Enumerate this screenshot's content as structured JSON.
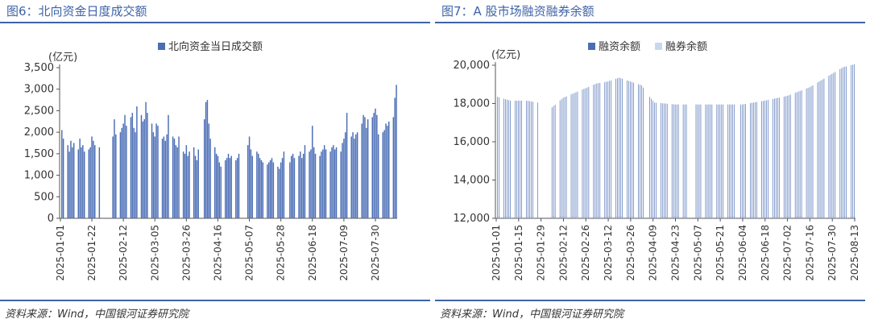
{
  "colors": {
    "accent": "#3f63a7",
    "bar_primary": "#4a6db5",
    "bar_secondary": "#c9d7ee"
  },
  "left": {
    "title": "图6：北向资金日度成交额",
    "source": "资料来源：Wind，中国银河证券研究院",
    "chart_data": {
      "type": "bar",
      "unit": "(亿元)",
      "legend": [
        "北向资金当日成交额"
      ],
      "legend_position": "top",
      "ylim": [
        0,
        3500
      ],
      "yticks": [
        0,
        500,
        1000,
        1500,
        2000,
        2500,
        3000,
        3500
      ],
      "ytick_labels": [
        "0",
        "500",
        "1,000",
        "1,500",
        "2,000",
        "2,500",
        "3,000",
        "3,500"
      ],
      "x_range": [
        "2025-01-01",
        "2025-08-13"
      ],
      "xticks": [
        "2025-01-01",
        "2025-01-22",
        "2025-02-12",
        "2025-03-05",
        "2025-03-26",
        "2025-04-16",
        "2025-05-07",
        "2025-05-28",
        "2025-06-18",
        "2025-07-09",
        "2025-07-30"
      ],
      "grid": false,
      "series": [
        {
          "name": "北向资金当日成交额",
          "points": [
            [
              "2025-01-02",
              2050
            ],
            [
              "2025-01-03",
              1850
            ],
            [
              "2025-01-06",
              1700
            ],
            [
              "2025-01-07",
              1550
            ],
            [
              "2025-01-08",
              1800
            ],
            [
              "2025-01-09",
              1650
            ],
            [
              "2025-01-10",
              1750
            ],
            [
              "2025-01-13",
              1600
            ],
            [
              "2025-01-14",
              1850
            ],
            [
              "2025-01-15",
              1650
            ],
            [
              "2025-01-16",
              1700
            ],
            [
              "2025-01-17",
              1550
            ],
            [
              "2025-01-20",
              1600
            ],
            [
              "2025-01-21",
              1650
            ],
            [
              "2025-01-22",
              1900
            ],
            [
              "2025-01-23",
              1800
            ],
            [
              "2025-01-24",
              1700
            ],
            [
              "2025-01-27",
              1650
            ],
            [
              "2025-02-05",
              1900
            ],
            [
              "2025-02-06",
              2300
            ],
            [
              "2025-02-07",
              1950
            ],
            [
              "2025-02-10",
              2000
            ],
            [
              "2025-02-11",
              2100
            ],
            [
              "2025-02-12",
              2200
            ],
            [
              "2025-02-13",
              2400
            ],
            [
              "2025-02-14",
              2150
            ],
            [
              "2025-02-17",
              2350
            ],
            [
              "2025-02-18",
              2450
            ],
            [
              "2025-02-19",
              2100
            ],
            [
              "2025-02-20",
              2000
            ],
            [
              "2025-02-21",
              2600
            ],
            [
              "2025-02-24",
              2400
            ],
            [
              "2025-02-25",
              2250
            ],
            [
              "2025-02-26",
              2300
            ],
            [
              "2025-02-27",
              2700
            ],
            [
              "2025-02-28",
              2450
            ],
            [
              "2025-03-03",
              2200
            ],
            [
              "2025-03-04",
              2000
            ],
            [
              "2025-03-05",
              1900
            ],
            [
              "2025-03-06",
              2200
            ],
            [
              "2025-03-07",
              2150
            ],
            [
              "2025-03-10",
              1850
            ],
            [
              "2025-03-11",
              1900
            ],
            [
              "2025-03-12",
              1800
            ],
            [
              "2025-03-13",
              1950
            ],
            [
              "2025-03-14",
              2400
            ],
            [
              "2025-03-17",
              1900
            ],
            [
              "2025-03-18",
              1850
            ],
            [
              "2025-03-19",
              1700
            ],
            [
              "2025-03-20",
              1650
            ],
            [
              "2025-03-21",
              1900
            ],
            [
              "2025-03-24",
              1550
            ],
            [
              "2025-03-25",
              1500
            ],
            [
              "2025-03-26",
              1700
            ],
            [
              "2025-03-27",
              1450
            ],
            [
              "2025-03-28",
              1550
            ],
            [
              "2025-03-31",
              1650
            ],
            [
              "2025-04-01",
              1450
            ],
            [
              "2025-04-02",
              1350
            ],
            [
              "2025-04-03",
              1600
            ],
            [
              "2025-04-07",
              2300
            ],
            [
              "2025-04-08",
              2700
            ],
            [
              "2025-04-09",
              2750
            ],
            [
              "2025-04-10",
              2200
            ],
            [
              "2025-04-11",
              1850
            ],
            [
              "2025-04-14",
              1650
            ],
            [
              "2025-04-15",
              1500
            ],
            [
              "2025-04-16",
              1450
            ],
            [
              "2025-04-17",
              1300
            ],
            [
              "2025-04-18",
              1200
            ],
            [
              "2025-04-21",
              1350
            ],
            [
              "2025-04-22",
              1400
            ],
            [
              "2025-04-23",
              1500
            ],
            [
              "2025-04-24",
              1400
            ],
            [
              "2025-04-25",
              1450
            ],
            [
              "2025-04-28",
              1350
            ],
            [
              "2025-04-29",
              1400
            ],
            [
              "2025-04-30",
              1500
            ],
            [
              "2025-05-06",
              1700
            ],
            [
              "2025-05-07",
              1900
            ],
            [
              "2025-05-08",
              1600
            ],
            [
              "2025-05-09",
              1450
            ],
            [
              "2025-05-12",
              1550
            ],
            [
              "2025-05-13",
              1500
            ],
            [
              "2025-05-14",
              1400
            ],
            [
              "2025-05-15",
              1350
            ],
            [
              "2025-05-16",
              1300
            ],
            [
              "2025-05-19",
              1250
            ],
            [
              "2025-05-20",
              1300
            ],
            [
              "2025-05-21",
              1350
            ],
            [
              "2025-05-22",
              1400
            ],
            [
              "2025-05-23",
              1300
            ],
            [
              "2025-05-26",
              1200
            ],
            [
              "2025-05-27",
              1150
            ],
            [
              "2025-05-28",
              1300
            ],
            [
              "2025-05-29",
              1400
            ],
            [
              "2025-05-30",
              1550
            ],
            [
              "2025-06-03",
              1300
            ],
            [
              "2025-06-04",
              1450
            ],
            [
              "2025-06-05",
              1500
            ],
            [
              "2025-06-06",
              1400
            ],
            [
              "2025-06-09",
              1450
            ],
            [
              "2025-06-10",
              1550
            ],
            [
              "2025-06-11",
              1400
            ],
            [
              "2025-06-12",
              1500
            ],
            [
              "2025-06-13",
              1700
            ],
            [
              "2025-06-16",
              1550
            ],
            [
              "2025-06-17",
              1600
            ],
            [
              "2025-06-18",
              2150
            ],
            [
              "2025-06-19",
              1650
            ],
            [
              "2025-06-20",
              1500
            ],
            [
              "2025-06-23",
              1450
            ],
            [
              "2025-06-24",
              1550
            ],
            [
              "2025-06-25",
              1600
            ],
            [
              "2025-06-26",
              1700
            ],
            [
              "2025-06-27",
              1600
            ],
            [
              "2025-06-30",
              1550
            ],
            [
              "2025-07-01",
              1650
            ],
            [
              "2025-07-02",
              1700
            ],
            [
              "2025-07-03",
              1600
            ],
            [
              "2025-07-04",
              1650
            ],
            [
              "2025-07-07",
              1550
            ],
            [
              "2025-07-08",
              1750
            ],
            [
              "2025-07-09",
              1850
            ],
            [
              "2025-07-10",
              2000
            ],
            [
              "2025-07-11",
              2450
            ],
            [
              "2025-07-14",
              1900
            ],
            [
              "2025-07-15",
              2000
            ],
            [
              "2025-07-16",
              1850
            ],
            [
              "2025-07-17",
              1950
            ],
            [
              "2025-07-18",
              2000
            ],
            [
              "2025-07-21",
              2200
            ],
            [
              "2025-07-22",
              2400
            ],
            [
              "2025-07-23",
              2350
            ],
            [
              "2025-07-24",
              2100
            ],
            [
              "2025-07-25",
              2300
            ],
            [
              "2025-07-28",
              2350
            ],
            [
              "2025-07-29",
              2450
            ],
            [
              "2025-07-30",
              2550
            ],
            [
              "2025-07-31",
              2400
            ],
            [
              "2025-08-01",
              1950
            ],
            [
              "2025-08-04",
              2000
            ],
            [
              "2025-08-05",
              2050
            ],
            [
              "2025-08-06",
              2200
            ],
            [
              "2025-08-07",
              2150
            ],
            [
              "2025-08-08",
              2250
            ],
            [
              "2025-08-11",
              2350
            ],
            [
              "2025-08-12",
              2800
            ],
            [
              "2025-08-13",
              3100
            ]
          ]
        }
      ]
    }
  },
  "right": {
    "title": "图7：A 股市场融资融券余额",
    "source": "资料来源：Wind，中国银河证券研究院",
    "chart_data": {
      "type": "bar",
      "unit": "(亿元)",
      "legend": [
        "融资余额",
        "融券余额"
      ],
      "legend_position": "top",
      "ylim": [
        12000,
        20000
      ],
      "yticks": [
        12000,
        14000,
        16000,
        18000,
        20000
      ],
      "ytick_labels": [
        "12,000",
        "14,000",
        "16,000",
        "18,000",
        "20,000"
      ],
      "x_range": [
        "2025-01-01",
        "2025-08-13"
      ],
      "xticks": [
        "2025-01-01",
        "2025-01-15",
        "2025-01-29",
        "2025-02-12",
        "2025-02-26",
        "2025-03-12",
        "2025-03-26",
        "2025-04-09",
        "2025-04-23",
        "2025-05-07",
        "2025-05-21",
        "2025-06-04",
        "2025-06-18",
        "2025-07-02",
        "2025-07-16",
        "2025-07-30",
        "2025-08-13"
      ],
      "grid": false,
      "series": [
        {
          "name": "融资余额",
          "anchors": [
            [
              "2025-01-02",
              18350
            ],
            [
              "2025-01-10",
              18150
            ],
            [
              "2025-01-20",
              18150
            ],
            [
              "2025-01-27",
              18050
            ],
            [
              "2025-02-05",
              17800
            ],
            [
              "2025-02-12",
              18300
            ],
            [
              "2025-02-19",
              18550
            ],
            [
              "2025-02-26",
              18800
            ],
            [
              "2025-03-05",
              19050
            ],
            [
              "2025-03-12",
              19150
            ],
            [
              "2025-03-19",
              19350
            ],
            [
              "2025-03-26",
              19150
            ],
            [
              "2025-04-02",
              18950
            ],
            [
              "2025-04-07",
              18350
            ],
            [
              "2025-04-10",
              18050
            ],
            [
              "2025-04-23",
              17950
            ],
            [
              "2025-05-07",
              17950
            ],
            [
              "2025-05-21",
              17950
            ],
            [
              "2025-06-04",
              17950
            ],
            [
              "2025-06-18",
              18150
            ],
            [
              "2025-07-02",
              18400
            ],
            [
              "2025-07-16",
              18850
            ],
            [
              "2025-07-30",
              19550
            ],
            [
              "2025-08-06",
              19900
            ],
            [
              "2025-08-13",
              20050
            ]
          ]
        },
        {
          "name": "融券余额",
          "anchors": [
            [
              "2025-01-02",
              12120
            ],
            [
              "2025-04-01",
              12110
            ],
            [
              "2025-05-01",
              12100
            ],
            [
              "2025-08-13",
              12105
            ]
          ]
        }
      ]
    }
  }
}
